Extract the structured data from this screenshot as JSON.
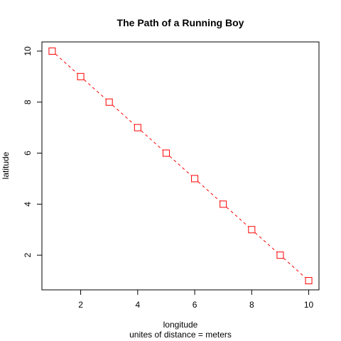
{
  "chart_data": {
    "type": "line",
    "title": "The Path of a Running Boy",
    "xlabel": "longitude",
    "xlabel_sub": "unites of distance = meters",
    "ylabel": "latitude",
    "x": [
      1,
      2,
      3,
      4,
      5,
      6,
      7,
      8,
      9,
      10
    ],
    "y": [
      10,
      9,
      8,
      7,
      6,
      5,
      4,
      3,
      2,
      1
    ],
    "xlim": [
      0.64,
      10.36
    ],
    "ylim": [
      0.64,
      10.36
    ],
    "x_ticks": [
      2,
      4,
      6,
      8,
      10
    ],
    "y_ticks": [
      2,
      4,
      6,
      8,
      10
    ],
    "grid": false,
    "line_style": "dashed",
    "marker": "open-square",
    "line_color": "#ff0000",
    "marker_color": "#ff0000"
  }
}
